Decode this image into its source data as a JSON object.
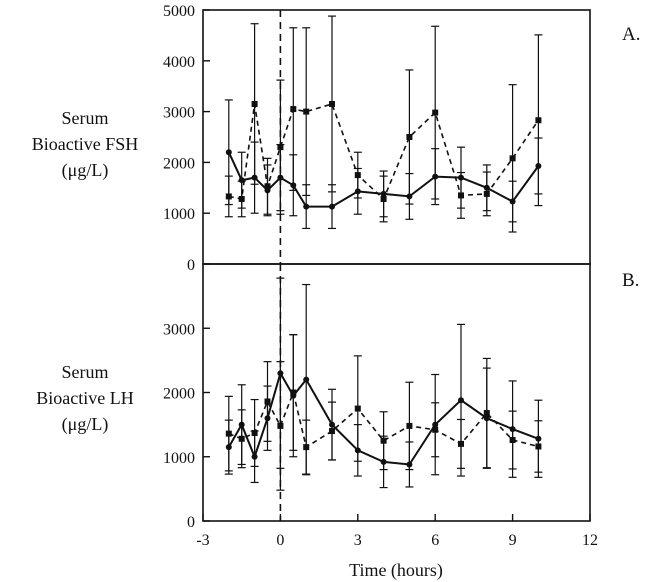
{
  "chart_data": [
    {
      "type": "line",
      "panel_label": "A.",
      "ylabel_lines": [
        "Serum",
        "Bioactive FSH",
        "(μg/L)"
      ],
      "xlabel": "",
      "ylim": [
        0,
        5000
      ],
      "yticks": [
        0,
        1000,
        2000,
        3000,
        4000,
        5000
      ],
      "reference_line_x": 0,
      "series": [
        {
          "style": "solid",
          "marker": "circle",
          "x": [
            -2,
            -1.5,
            -1,
            -0.5,
            0,
            0.5,
            1,
            2,
            3,
            4,
            5,
            6,
            7,
            8,
            9,
            10
          ],
          "y": [
            2200,
            1650,
            1700,
            1450,
            1700,
            1550,
            1130,
            1130,
            1430,
            1380,
            1330,
            1720,
            1700,
            1500,
            1230,
            1930
          ],
          "err": [
            1030,
            550,
            700,
            500,
            650,
            600,
            430,
            430,
            450,
            450,
            450,
            550,
            600,
            450,
            400,
            550
          ]
        },
        {
          "style": "dashed",
          "marker": "square",
          "x": [
            -2,
            -1.5,
            -1,
            -0.5,
            0,
            0.5,
            1,
            2,
            3,
            4,
            5,
            6,
            7,
            8,
            9,
            10
          ],
          "y": [
            1330,
            1280,
            3150,
            1530,
            2300,
            3050,
            3000,
            3150,
            1750,
            1280,
            2500,
            2980,
            1350,
            1380,
            2080,
            2830
          ],
          "err": [
            400,
            350,
            1580,
            550,
            1320,
            1600,
            1650,
            1730,
            450,
            450,
            1320,
            1700,
            450,
            430,
            1450,
            1680
          ]
        }
      ]
    },
    {
      "type": "line",
      "panel_label": "B.",
      "ylabel_lines": [
        "Serum",
        "Bioactive LH",
        "(μg/L)"
      ],
      "xlabel": "Time (hours)",
      "xlim": [
        -3,
        12
      ],
      "xticks": [
        -3,
        0,
        3,
        6,
        9,
        12
      ],
      "ylim": [
        0,
        4000
      ],
      "yticks": [
        0,
        1000,
        2000,
        3000
      ],
      "reference_line_x": 0,
      "series": [
        {
          "style": "solid",
          "marker": "circle",
          "x": [
            -2,
            -1.5,
            -1,
            -0.5,
            0,
            0.5,
            1,
            2,
            3,
            4,
            5,
            6,
            7,
            8,
            9,
            10
          ],
          "y": [
            1150,
            1500,
            1000,
            1600,
            2300,
            1950,
            2200,
            1500,
            1100,
            920,
            880,
            1500,
            1880,
            1600,
            1430,
            1280
          ],
          "err": [
            420,
            620,
            400,
            500,
            1480,
            950,
            1480,
            550,
            400,
            400,
            350,
            780,
            1180,
            780,
            750,
            600
          ]
        },
        {
          "style": "dashed",
          "marker": "square",
          "x": [
            -2,
            -1.5,
            -1,
            -0.5,
            0,
            0.5,
            1,
            2,
            3,
            4,
            5,
            6,
            7,
            8,
            9,
            10
          ],
          "y": [
            1360,
            1280,
            1370,
            1860,
            1480,
            2000,
            1150,
            1400,
            1750,
            1250,
            1480,
            1420,
            1200,
            1680,
            1260,
            1160
          ],
          "err": [
            580,
            450,
            520,
            620,
            1000,
            900,
            420,
            450,
            820,
            450,
            680,
            420,
            380,
            850,
            450,
            400
          ]
        }
      ]
    }
  ]
}
